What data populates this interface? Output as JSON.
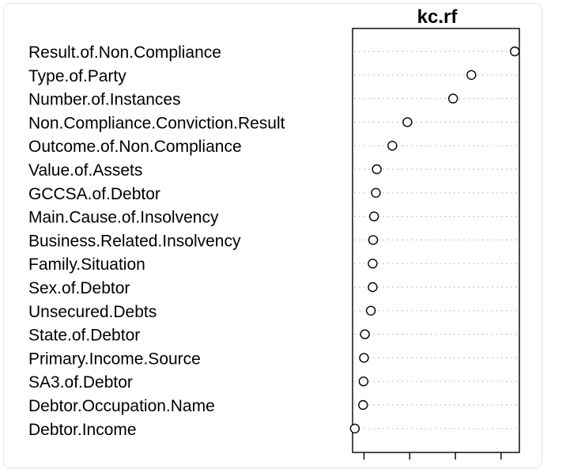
{
  "chart_data": {
    "type": "scatter",
    "title": "kc.rf",
    "categories": [
      "Result.of.Non.Compliance",
      "Type.of.Party",
      "Number.of.Instances",
      "Non.Compliance.Conviction.Result",
      "Outcome.of.Non.Compliance",
      "Value.of.Assets",
      "GCCSA.of.Debtor",
      "Main.Cause.of.Insolvency",
      "Business.Related.Insolvency",
      "Family.Situation",
      "Sex.of.Debtor",
      "Unsecured.Debts",
      "State.of.Debtor",
      "Primary.Income.Source",
      "SA3.of.Debtor",
      "Debtor.Occupation.Name",
      "Debtor.Income"
    ],
    "values": [
      3.3,
      2.35,
      1.95,
      0.95,
      0.62,
      0.28,
      0.26,
      0.22,
      0.2,
      0.19,
      0.19,
      0.15,
      0.02,
      0.0,
      -0.01,
      -0.02,
      -0.2
    ],
    "xlim": [
      -0.25,
      3.4
    ],
    "xticks": [
      0,
      1,
      2,
      3
    ],
    "xtick_labels_visible": false,
    "grid": "dotted horizontal guide per category",
    "xlabel": "",
    "ylabel": ""
  }
}
